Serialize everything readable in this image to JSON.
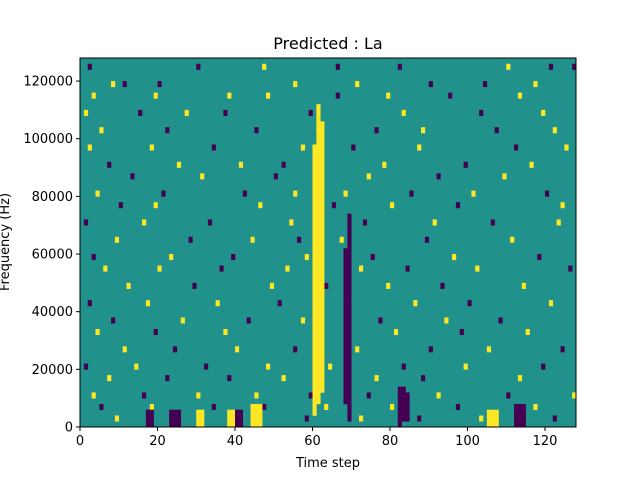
{
  "chart_data": {
    "type": "heatmap",
    "title": "Predicted : La",
    "xlabel": "Time step",
    "ylabel": "Frequency (Hz)",
    "xlim": [
      0,
      128
    ],
    "ylim": [
      0,
      128000
    ],
    "x_ticks": [
      0,
      20,
      40,
      60,
      80,
      100,
      120
    ],
    "y_ticks": [
      0,
      20000,
      40000,
      60000,
      80000,
      100000,
      120000
    ],
    "x_tick_labels": [
      "0",
      "20",
      "40",
      "60",
      "80",
      "100",
      "120"
    ],
    "y_tick_labels": [
      "0",
      "20000",
      "40000",
      "60000",
      "80000",
      "100000",
      "120000"
    ],
    "grid": false,
    "colormap": {
      "low": "#440154",
      "mid": "#21918c",
      "high": "#fde725"
    },
    "background_value": 0,
    "n_time_steps": 128,
    "n_freq_bins": 64,
    "cells": [
      {
        "t": 2,
        "f": 62,
        "v": -1
      },
      {
        "t": 30,
        "f": 62,
        "v": -1
      },
      {
        "t": 47,
        "f": 62,
        "v": 1
      },
      {
        "t": 66,
        "f": 62,
        "v": -1
      },
      {
        "t": 82,
        "f": 62,
        "v": -1
      },
      {
        "t": 110,
        "f": 62,
        "v": 1
      },
      {
        "t": 121,
        "f": 62,
        "v": -1
      },
      {
        "t": 127,
        "f": 62,
        "v": -1
      },
      {
        "t": 8,
        "f": 59,
        "v": 1
      },
      {
        "t": 11,
        "f": 59,
        "v": -1
      },
      {
        "t": 20,
        "f": 59,
        "v": -1
      },
      {
        "t": 55,
        "f": 59,
        "v": 1
      },
      {
        "t": 71,
        "f": 59,
        "v": 1
      },
      {
        "t": 90,
        "f": 59,
        "v": -1
      },
      {
        "t": 104,
        "f": 59,
        "v": -1
      },
      {
        "t": 117,
        "f": 59,
        "v": 1
      },
      {
        "t": 3,
        "f": 57,
        "v": 1
      },
      {
        "t": 19,
        "f": 57,
        "v": 1
      },
      {
        "t": 38,
        "f": 57,
        "v": 1
      },
      {
        "t": 48,
        "f": 57,
        "v": 1
      },
      {
        "t": 66,
        "f": 57,
        "v": -1
      },
      {
        "t": 79,
        "f": 57,
        "v": 1
      },
      {
        "t": 95,
        "f": 57,
        "v": -1
      },
      {
        "t": 113,
        "f": 57,
        "v": 1
      },
      {
        "t": 1,
        "f": 54,
        "v": 1
      },
      {
        "t": 15,
        "f": 54,
        "v": -1
      },
      {
        "t": 27,
        "f": 54,
        "v": 1
      },
      {
        "t": 37,
        "f": 54,
        "v": -1
      },
      {
        "t": 59,
        "f": 54,
        "v": -1
      },
      {
        "t": 83,
        "f": 54,
        "v": 1
      },
      {
        "t": 103,
        "f": 54,
        "v": -1
      },
      {
        "t": 119,
        "f": 54,
        "v": 1
      },
      {
        "t": 5,
        "f": 51,
        "v": 1
      },
      {
        "t": 22,
        "f": 51,
        "v": -1
      },
      {
        "t": 45,
        "f": 51,
        "v": -1
      },
      {
        "t": 61,
        "f": 51,
        "v": 1
      },
      {
        "t": 76,
        "f": 51,
        "v": -1
      },
      {
        "t": 88,
        "f": 51,
        "v": 1
      },
      {
        "t": 107,
        "f": 51,
        "v": -1
      },
      {
        "t": 122,
        "f": 51,
        "v": 1
      },
      {
        "t": 2,
        "f": 48,
        "v": 1
      },
      {
        "t": 18,
        "f": 48,
        "v": 1
      },
      {
        "t": 34,
        "f": 48,
        "v": -1
      },
      {
        "t": 57,
        "f": 48,
        "v": 1
      },
      {
        "t": 70,
        "f": 48,
        "v": -1
      },
      {
        "t": 87,
        "f": 48,
        "v": 1
      },
      {
        "t": 112,
        "f": 48,
        "v": -1
      },
      {
        "t": 125,
        "f": 48,
        "v": 1
      },
      {
        "t": 7,
        "f": 45,
        "v": -1
      },
      {
        "t": 25,
        "f": 45,
        "v": 1
      },
      {
        "t": 41,
        "f": 45,
        "v": 1
      },
      {
        "t": 52,
        "f": 45,
        "v": -1
      },
      {
        "t": 78,
        "f": 45,
        "v": 1
      },
      {
        "t": 99,
        "f": 45,
        "v": -1
      },
      {
        "t": 116,
        "f": 45,
        "v": 1
      },
      {
        "t": 13,
        "f": 43,
        "v": -1
      },
      {
        "t": 31,
        "f": 43,
        "v": 1
      },
      {
        "t": 50,
        "f": 43,
        "v": -1
      },
      {
        "t": 60,
        "f": 43,
        "v": 1
      },
      {
        "t": 74,
        "f": 43,
        "v": 1
      },
      {
        "t": 92,
        "f": 43,
        "v": -1
      },
      {
        "t": 109,
        "f": 43,
        "v": 1
      },
      {
        "t": 4,
        "f": 40,
        "v": 1
      },
      {
        "t": 21,
        "f": 40,
        "v": -1
      },
      {
        "t": 42,
        "f": 40,
        "v": -1
      },
      {
        "t": 55,
        "f": 40,
        "v": 1
      },
      {
        "t": 68,
        "f": 40,
        "v": 1
      },
      {
        "t": 85,
        "f": 40,
        "v": -1
      },
      {
        "t": 101,
        "f": 40,
        "v": 1
      },
      {
        "t": 120,
        "f": 40,
        "v": -1
      },
      {
        "t": 10,
        "f": 38,
        "v": -1
      },
      {
        "t": 19,
        "f": 38,
        "v": 1
      },
      {
        "t": 46,
        "f": 38,
        "v": 1
      },
      {
        "t": 65,
        "f": 38,
        "v": -1
      },
      {
        "t": 80,
        "f": 38,
        "v": 1
      },
      {
        "t": 97,
        "f": 38,
        "v": -1
      },
      {
        "t": 124,
        "f": 38,
        "v": 1
      },
      {
        "t": 1,
        "f": 35,
        "v": -1
      },
      {
        "t": 16,
        "f": 35,
        "v": 1
      },
      {
        "t": 33,
        "f": 35,
        "v": -1
      },
      {
        "t": 54,
        "f": 35,
        "v": 1
      },
      {
        "t": 73,
        "f": 35,
        "v": -1
      },
      {
        "t": 91,
        "f": 35,
        "v": 1
      },
      {
        "t": 106,
        "f": 35,
        "v": -1
      },
      {
        "t": 123,
        "f": 35,
        "v": 1
      },
      {
        "t": 9,
        "f": 32,
        "v": 1
      },
      {
        "t": 28,
        "f": 32,
        "v": -1
      },
      {
        "t": 44,
        "f": 32,
        "v": 1
      },
      {
        "t": 56,
        "f": 32,
        "v": -1
      },
      {
        "t": 67,
        "f": 32,
        "v": 1
      },
      {
        "t": 89,
        "f": 32,
        "v": -1
      },
      {
        "t": 111,
        "f": 32,
        "v": 1
      },
      {
        "t": 3,
        "f": 29,
        "v": -1
      },
      {
        "t": 23,
        "f": 29,
        "v": 1
      },
      {
        "t": 39,
        "f": 29,
        "v": -1
      },
      {
        "t": 58,
        "f": 29,
        "v": 1
      },
      {
        "t": 75,
        "f": 29,
        "v": -1
      },
      {
        "t": 96,
        "f": 29,
        "v": 1
      },
      {
        "t": 118,
        "f": 29,
        "v": -1
      },
      {
        "t": 6,
        "f": 27,
        "v": 1
      },
      {
        "t": 20,
        "f": 27,
        "v": 1
      },
      {
        "t": 36,
        "f": 27,
        "v": -1
      },
      {
        "t": 53,
        "f": 27,
        "v": 1
      },
      {
        "t": 72,
        "f": 27,
        "v": 1
      },
      {
        "t": 84,
        "f": 27,
        "v": -1
      },
      {
        "t": 102,
        "f": 27,
        "v": 1
      },
      {
        "t": 126,
        "f": 27,
        "v": -1
      },
      {
        "t": 12,
        "f": 24,
        "v": 1
      },
      {
        "t": 29,
        "f": 24,
        "v": -1
      },
      {
        "t": 49,
        "f": 24,
        "v": 1
      },
      {
        "t": 63,
        "f": 24,
        "v": -1
      },
      {
        "t": 79,
        "f": 24,
        "v": 1
      },
      {
        "t": 93,
        "f": 24,
        "v": -1
      },
      {
        "t": 114,
        "f": 24,
        "v": 1
      },
      {
        "t": 2,
        "f": 21,
        "v": -1
      },
      {
        "t": 17,
        "f": 21,
        "v": 1
      },
      {
        "t": 35,
        "f": 21,
        "v": 1
      },
      {
        "t": 51,
        "f": 21,
        "v": -1
      },
      {
        "t": 69,
        "f": 21,
        "v": 1
      },
      {
        "t": 86,
        "f": 21,
        "v": 1
      },
      {
        "t": 100,
        "f": 21,
        "v": -1
      },
      {
        "t": 121,
        "f": 21,
        "v": 1
      },
      {
        "t": 8,
        "f": 18,
        "v": -1
      },
      {
        "t": 26,
        "f": 18,
        "v": 1
      },
      {
        "t": 43,
        "f": 18,
        "v": -1
      },
      {
        "t": 57,
        "f": 18,
        "v": 1
      },
      {
        "t": 77,
        "f": 18,
        "v": -1
      },
      {
        "t": 94,
        "f": 18,
        "v": 1
      },
      {
        "t": 108,
        "f": 18,
        "v": -1
      },
      {
        "t": 4,
        "f": 16,
        "v": 1
      },
      {
        "t": 19,
        "f": 16,
        "v": -1
      },
      {
        "t": 37,
        "f": 16,
        "v": 1
      },
      {
        "t": 62,
        "f": 16,
        "v": -1
      },
      {
        "t": 81,
        "f": 16,
        "v": 1
      },
      {
        "t": 98,
        "f": 16,
        "v": -1
      },
      {
        "t": 115,
        "f": 16,
        "v": 1
      },
      {
        "t": 11,
        "f": 13,
        "v": 1
      },
      {
        "t": 24,
        "f": 13,
        "v": -1
      },
      {
        "t": 40,
        "f": 13,
        "v": 1
      },
      {
        "t": 55,
        "f": 13,
        "v": -1
      },
      {
        "t": 71,
        "f": 13,
        "v": 1
      },
      {
        "t": 90,
        "f": 13,
        "v": -1
      },
      {
        "t": 105,
        "f": 13,
        "v": 1
      },
      {
        "t": 124,
        "f": 13,
        "v": -1
      },
      {
        "t": 1,
        "f": 10,
        "v": -1
      },
      {
        "t": 14,
        "f": 10,
        "v": 1
      },
      {
        "t": 32,
        "f": 10,
        "v": -1
      },
      {
        "t": 48,
        "f": 10,
        "v": 1
      },
      {
        "t": 64,
        "f": 10,
        "v": 1
      },
      {
        "t": 83,
        "f": 10,
        "v": -1
      },
      {
        "t": 99,
        "f": 10,
        "v": 1
      },
      {
        "t": 119,
        "f": 10,
        "v": -1
      },
      {
        "t": 7,
        "f": 8,
        "v": 1
      },
      {
        "t": 22,
        "f": 8,
        "v": -1
      },
      {
        "t": 38,
        "f": 8,
        "v": -1
      },
      {
        "t": 52,
        "f": 8,
        "v": 1
      },
      {
        "t": 76,
        "f": 8,
        "v": 1
      },
      {
        "t": 88,
        "f": 8,
        "v": -1
      },
      {
        "t": 113,
        "f": 8,
        "v": 1
      },
      {
        "t": 3,
        "f": 5,
        "v": 1
      },
      {
        "t": 16,
        "f": 5,
        "v": -1
      },
      {
        "t": 30,
        "f": 5,
        "v": 1
      },
      {
        "t": 45,
        "f": 5,
        "v": 1
      },
      {
        "t": 59,
        "f": 5,
        "v": -1
      },
      {
        "t": 74,
        "f": 5,
        "v": -1
      },
      {
        "t": 92,
        "f": 5,
        "v": 1
      },
      {
        "t": 110,
        "f": 5,
        "v": -1
      },
      {
        "t": 127,
        "f": 5,
        "v": 1
      },
      {
        "t": 5,
        "f": 3,
        "v": -1
      },
      {
        "t": 18,
        "f": 3,
        "v": 1
      },
      {
        "t": 34,
        "f": 3,
        "v": -1
      },
      {
        "t": 47,
        "f": 3,
        "v": -1
      },
      {
        "t": 63,
        "f": 3,
        "v": 1
      },
      {
        "t": 80,
        "f": 3,
        "v": 1
      },
      {
        "t": 97,
        "f": 3,
        "v": -1
      },
      {
        "t": 117,
        "f": 3,
        "v": 1
      },
      {
        "t": 9,
        "f": 1,
        "v": 1
      },
      {
        "t": 25,
        "f": 1,
        "v": -1
      },
      {
        "t": 41,
        "f": 1,
        "v": 1
      },
      {
        "t": 58,
        "f": 1,
        "v": -1
      },
      {
        "t": 72,
        "f": 1,
        "v": 1
      },
      {
        "t": 87,
        "f": 1,
        "v": -1
      },
      {
        "t": 103,
        "f": 1,
        "v": 1
      },
      {
        "t": 122,
        "f": 1,
        "v": -1
      }
    ],
    "column_runs": [
      {
        "t": 60,
        "f0": 2,
        "f1": 48,
        "v": 1
      },
      {
        "t": 61,
        "f0": 4,
        "f1": 55,
        "v": 1
      },
      {
        "t": 62,
        "f0": 6,
        "f1": 52,
        "v": 1
      },
      {
        "t": 68,
        "f0": 4,
        "f1": 30,
        "v": -1
      },
      {
        "t": 69,
        "f0": 1,
        "f1": 36,
        "v": -1
      },
      {
        "t": 82,
        "f0": 0,
        "f1": 6,
        "v": -1
      },
      {
        "t": 83,
        "f0": 1,
        "f1": 6,
        "v": -1
      },
      {
        "t": 84,
        "f0": 1,
        "f1": 5,
        "v": -1
      },
      {
        "t": 112,
        "f0": 0,
        "f1": 3,
        "v": -1
      },
      {
        "t": 113,
        "f0": 0,
        "f1": 3,
        "v": -1
      },
      {
        "t": 114,
        "f0": 0,
        "f1": 3,
        "v": -1
      },
      {
        "t": 44,
        "f0": 0,
        "f1": 3,
        "v": 1
      },
      {
        "t": 45,
        "f0": 0,
        "f1": 3,
        "v": 1
      },
      {
        "t": 46,
        "f0": 0,
        "f1": 3,
        "v": 1
      },
      {
        "t": 23,
        "f0": 0,
        "f1": 2,
        "v": -1
      },
      {
        "t": 24,
        "f0": 0,
        "f1": 2,
        "v": -1
      },
      {
        "t": 25,
        "f0": 0,
        "f1": 2,
        "v": -1
      },
      {
        "t": 17,
        "f0": 0,
        "f1": 2,
        "v": -1
      },
      {
        "t": 18,
        "f0": 0,
        "f1": 2,
        "v": -1
      },
      {
        "t": 105,
        "f0": 0,
        "f1": 2,
        "v": 1
      },
      {
        "t": 106,
        "f0": 0,
        "f1": 2,
        "v": 1
      },
      {
        "t": 107,
        "f0": 0,
        "f1": 2,
        "v": 1
      },
      {
        "t": 38,
        "f0": 0,
        "f1": 2,
        "v": 1
      },
      {
        "t": 39,
        "f0": 0,
        "f1": 2,
        "v": 1
      },
      {
        "t": 40,
        "f0": 0,
        "f1": 2,
        "v": -1
      },
      {
        "t": 41,
        "f0": 0,
        "f1": 2,
        "v": -1
      },
      {
        "t": 30,
        "f0": 0,
        "f1": 2,
        "v": 1
      },
      {
        "t": 31,
        "f0": 0,
        "f1": 2,
        "v": 1
      }
    ]
  }
}
